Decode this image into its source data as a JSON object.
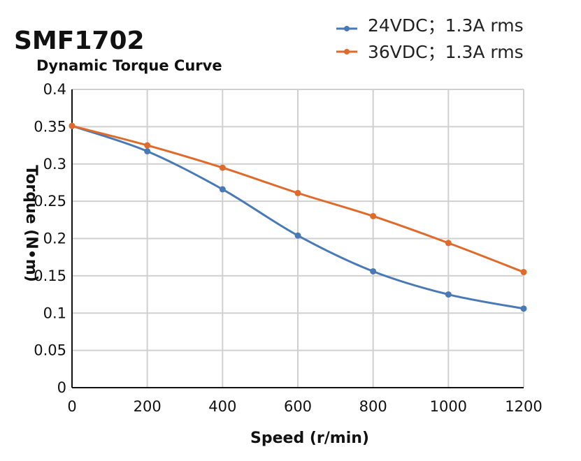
{
  "chart_data": {
    "type": "line",
    "title": "SMF1702",
    "subtitle": "Dynamic Torque Curve",
    "xlabel": "Speed (r/min)",
    "ylabel": "Torque (N•m)",
    "xlim": [
      0,
      1200
    ],
    "ylim": [
      0,
      0.4
    ],
    "x_ticks": [
      "0",
      "200",
      "400",
      "600",
      "800",
      "1000",
      "1200"
    ],
    "y_ticks": [
      "0",
      "0.05",
      "0.1",
      "0.15",
      "0.2",
      "0.25",
      "0.3",
      "0.35",
      "0.4"
    ],
    "grid": true,
    "legend_position": "top-right",
    "x": [
      0,
      200,
      400,
      600,
      800,
      1000,
      1200
    ],
    "series": [
      {
        "name": "24VDC；1.3A rms",
        "color": "#4a7ab5",
        "values": [
          0.351,
          0.317,
          0.266,
          0.204,
          0.156,
          0.125,
          0.106
        ]
      },
      {
        "name": "36VDC；1.3A rms",
        "color": "#e06a2a",
        "values": [
          0.351,
          0.325,
          0.295,
          0.261,
          0.23,
          0.194,
          0.155
        ]
      }
    ]
  }
}
